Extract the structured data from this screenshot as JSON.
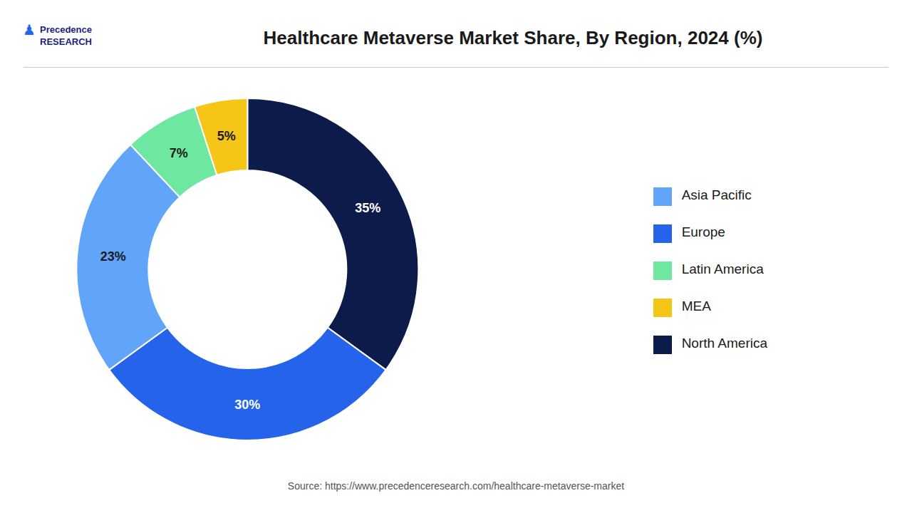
{
  "chart_data": {
    "type": "pie",
    "title": "Healthcare Metaverse Market Share, By Region, 2024 (%)",
    "categories": [
      "North America",
      "Europe",
      "Asia Pacific",
      "Latin America",
      "MEA"
    ],
    "values": [
      35,
      30,
      23,
      7,
      5
    ],
    "value_labels": [
      "35%",
      "30%",
      "23%",
      "7%",
      "5%"
    ],
    "colors": [
      "#0d1b4b",
      "#2563eb",
      "#60a5fa",
      "#6ee7a0",
      "#f5c518"
    ],
    "data_labels": true,
    "legend": "right",
    "annotations": [
      "Source: https://www.precedenceresearch.com/healthcare-metaverse-market",
      "Precedence\nRESEARCH",
      "♟"
    ]
  }
}
